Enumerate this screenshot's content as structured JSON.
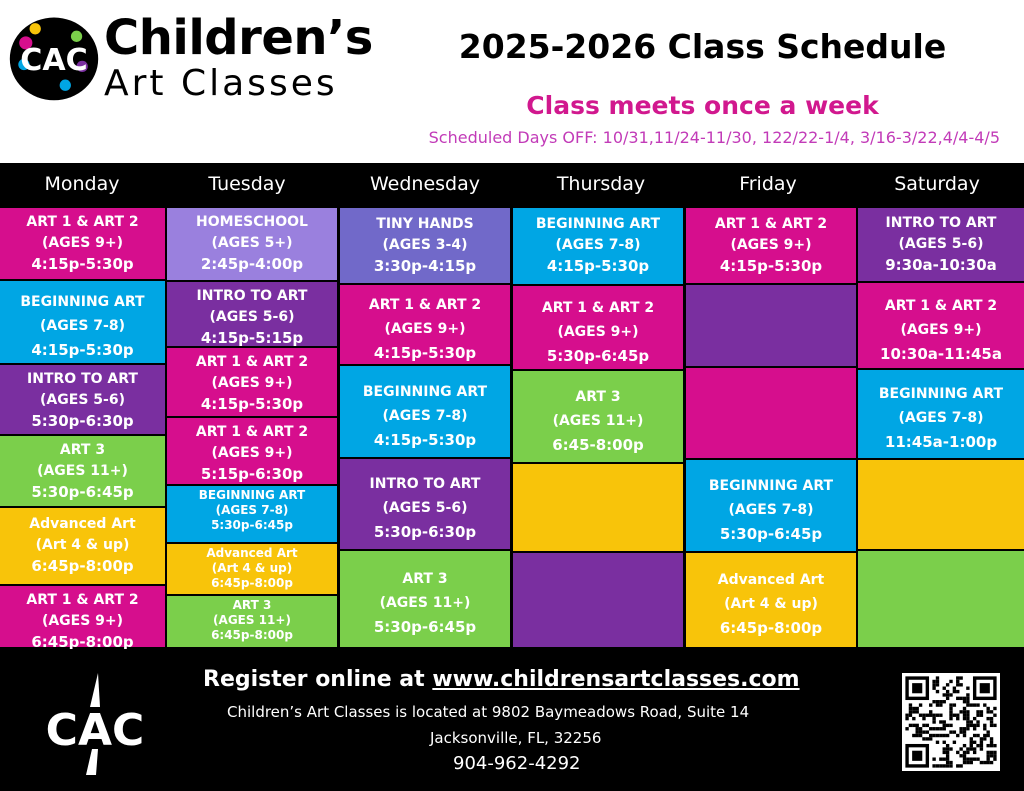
{
  "brand": {
    "line1": "Children’s",
    "line2": "Art Classes"
  },
  "header": {
    "title": "2025-2026 Class Schedule",
    "subtitle": "Class meets once a week",
    "days_off": "Scheduled Days OFF: 10/31,11/24-11/30, 122/22-1/4, 3/16-3/22,4/4-4/5"
  },
  "colors": {
    "magenta": "#d60e8d",
    "blue": "#00a6e4",
    "purple": "#7a2fa0",
    "green": "#7bcf4b",
    "yellow": "#f8c40a",
    "lilac": "#9a80de",
    "periwinkle": "#7169c9"
  },
  "days": [
    "Monday",
    "Tuesday",
    "Wednesday",
    "Thursday",
    "Friday",
    "Saturday"
  ],
  "schedule": [
    {
      "day": "Monday",
      "blocks": [
        {
          "name": "ART 1 & ART 2",
          "ages": "(AGES 9+)",
          "time": "4:15p-5:30p",
          "color": "magenta"
        },
        {
          "name": "BEGINNING ART",
          "ages": "(AGES 7-8)",
          "time": "4:15p-5:30p",
          "color": "blue"
        },
        {
          "name": "INTRO TO ART",
          "ages": "(AGES 5-6)",
          "time": "5:30p-6:30p",
          "color": "purple"
        },
        {
          "name": "ART 3",
          "ages": "(AGES 11+)",
          "time": "5:30p-6:45p",
          "color": "green"
        },
        {
          "name": "Advanced Art",
          "ages": "(Art 4 & up)",
          "time": "6:45p-8:00p",
          "color": "yellow"
        },
        {
          "name": "ART 1 & ART 2",
          "ages": "(AGES 9+)",
          "time": "6:45p-8:00p",
          "color": "magenta"
        }
      ]
    },
    {
      "day": "Tuesday",
      "blocks": [
        {
          "name": "HOMESCHOOL",
          "ages": "(AGES 5+)",
          "time": "2:45p-4:00p",
          "color": "lilac"
        },
        {
          "name": "INTRO TO ART",
          "ages": "(AGES 5-6)",
          "time": "4:15p-5:15p",
          "color": "purple"
        },
        {
          "name": "ART 1 & ART 2",
          "ages": "(AGES 9+)",
          "time": "4:15p-5:30p",
          "color": "magenta"
        },
        {
          "name": "ART 1 & ART 2",
          "ages": "(AGES 9+)",
          "time": "5:15p-6:30p",
          "color": "magenta"
        },
        {
          "name": "BEGINNING ART",
          "ages": "(AGES 7-8)",
          "time": "5:30p-6:45p",
          "color": "blue"
        },
        {
          "name": "Advanced Art",
          "ages": "(Art 4 & up)",
          "time": "6:45p-8:00p",
          "color": "yellow"
        },
        {
          "name": "ART 3",
          "ages": "(AGES 11+)",
          "time": "6:45p-8:00p",
          "color": "green"
        }
      ]
    },
    {
      "day": "Wednesday",
      "blocks": [
        {
          "name": "TINY HANDS",
          "ages": "(AGES 3-4)",
          "time": "3:30p-4:15p",
          "color": "periwinkle"
        },
        {
          "name": "ART 1 & ART 2",
          "ages": "(AGES 9+)",
          "time": "4:15p-5:30p",
          "color": "magenta"
        },
        {
          "name": "BEGINNING ART",
          "ages": "(AGES 7-8)",
          "time": "4:15p-5:30p",
          "color": "blue"
        },
        {
          "name": "INTRO TO ART",
          "ages": "(AGES 5-6)",
          "time": "5:30p-6:30p",
          "color": "purple"
        },
        {
          "name": "ART 3",
          "ages": "(AGES 11+)",
          "time": "5:30p-6:45p",
          "color": "green"
        }
      ]
    },
    {
      "day": "Thursday",
      "blocks": [
        {
          "name": "BEGINNING ART",
          "ages": "(AGES 7-8)",
          "time": "4:15p-5:30p",
          "color": "blue"
        },
        {
          "name": "ART 1 & ART 2",
          "ages": "(AGES 9+)",
          "time": "5:30p-6:45p",
          "color": "magenta"
        },
        {
          "name": "ART 3",
          "ages": "(AGES 11+)",
          "time": "6:45-8:00p",
          "color": "green"
        },
        {
          "name": "",
          "ages": "",
          "time": "",
          "color": "yellow"
        },
        {
          "name": "",
          "ages": "",
          "time": "",
          "color": "purple"
        }
      ]
    },
    {
      "day": "Friday",
      "blocks": [
        {
          "name": "ART 1 & ART 2",
          "ages": "(AGES 9+)",
          "time": "4:15p-5:30p",
          "color": "magenta"
        },
        {
          "name": "",
          "ages": "",
          "time": "",
          "color": "purple"
        },
        {
          "name": "",
          "ages": "",
          "time": "",
          "color": "magenta"
        },
        {
          "name": "BEGINNING ART",
          "ages": "(AGES 7-8)",
          "time": "5:30p-6:45p",
          "color": "blue"
        },
        {
          "name": "Advanced Art",
          "ages": "(Art 4 & up)",
          "time": "6:45p-8:00p",
          "color": "yellow"
        }
      ]
    },
    {
      "day": "Saturday",
      "blocks": [
        {
          "name": "INTRO TO ART",
          "ages": "(AGES 5-6)",
          "time": "9:30a-10:30a",
          "color": "purple"
        },
        {
          "name": "ART 1 & ART 2",
          "ages": "(AGES 9+)",
          "time": "10:30a-11:45a",
          "color": "magenta"
        },
        {
          "name": "BEGINNING ART",
          "ages": "(AGES 7-8)",
          "time": "11:45a-1:00p",
          "color": "blue"
        },
        {
          "name": "",
          "ages": "",
          "time": "",
          "color": "yellow"
        },
        {
          "name": "",
          "ages": "",
          "time": "",
          "color": "green"
        }
      ]
    }
  ],
  "footer": {
    "register_prefix": "Register online at ",
    "register_url": "www.childrensartclasses.com",
    "address": "Children’s Art Classes is located at 9802 Baymeadows Road, Suite 14",
    "city": "Jacksonville, FL, 32256",
    "phone": "904-962-4292"
  }
}
